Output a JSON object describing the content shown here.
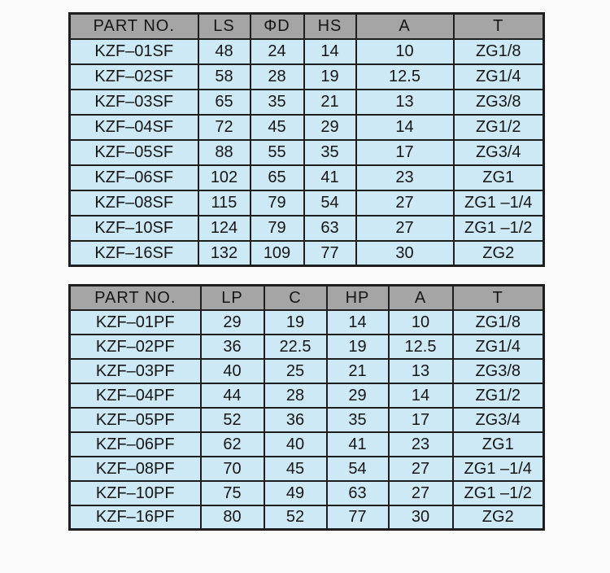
{
  "colors": {
    "page_background": "#fafafa",
    "header_background": "#a5a5a5",
    "row_background": "#cde9f6",
    "border": "#1e1e1e",
    "text": "#161616"
  },
  "tables": [
    {
      "id": "sf-series-spec-table",
      "headers": [
        "PART NO.",
        "LS",
        "ΦD",
        "HS",
        "A",
        "T"
      ],
      "rows": [
        [
          "KZF–01SF",
          "48",
          "24",
          "14",
          "10",
          "ZG1/8"
        ],
        [
          "KZF–02SF",
          "58",
          "28",
          "19",
          "12.5",
          "ZG1/4"
        ],
        [
          "KZF–03SF",
          "65",
          "35",
          "21",
          "13",
          "ZG3/8"
        ],
        [
          "KZF–04SF",
          "72",
          "45",
          "29",
          "14",
          "ZG1/2"
        ],
        [
          "KZF–05SF",
          "88",
          "55",
          "35",
          "17",
          "ZG3/4"
        ],
        [
          "KZF–06SF",
          "102",
          "65",
          "41",
          "23",
          "ZG1"
        ],
        [
          "KZF–08SF",
          "115",
          "79",
          "54",
          "27",
          "ZG1 –1/4"
        ],
        [
          "KZF–10SF",
          "124",
          "79",
          "63",
          "27",
          "ZG1 –1/2"
        ],
        [
          "KZF–16SF",
          "132",
          "109",
          "77",
          "30",
          "ZG2"
        ]
      ]
    },
    {
      "id": "pf-series-spec-table",
      "headers": [
        "PART NO.",
        "LP",
        "C",
        "HP",
        "A",
        "T"
      ],
      "rows": [
        [
          "KZF–01PF",
          "29",
          "19",
          "14",
          "10",
          "ZG1/8"
        ],
        [
          "KZF–02PF",
          "36",
          "22.5",
          "19",
          "12.5",
          "ZG1/4"
        ],
        [
          "KZF–03PF",
          "40",
          "25",
          "21",
          "13",
          "ZG3/8"
        ],
        [
          "KZF–04PF",
          "44",
          "28",
          "29",
          "14",
          "ZG1/2"
        ],
        [
          "KZF–05PF",
          "52",
          "36",
          "35",
          "17",
          "ZG3/4"
        ],
        [
          "KZF–06PF",
          "62",
          "40",
          "41",
          "23",
          "ZG1"
        ],
        [
          "KZF–08PF",
          "70",
          "45",
          "54",
          "27",
          "ZG1 –1/4"
        ],
        [
          "KZF–10PF",
          "75",
          "49",
          "63",
          "27",
          "ZG1 –1/2"
        ],
        [
          "KZF–16PF",
          "80",
          "52",
          "77",
          "30",
          "ZG2"
        ]
      ]
    }
  ]
}
